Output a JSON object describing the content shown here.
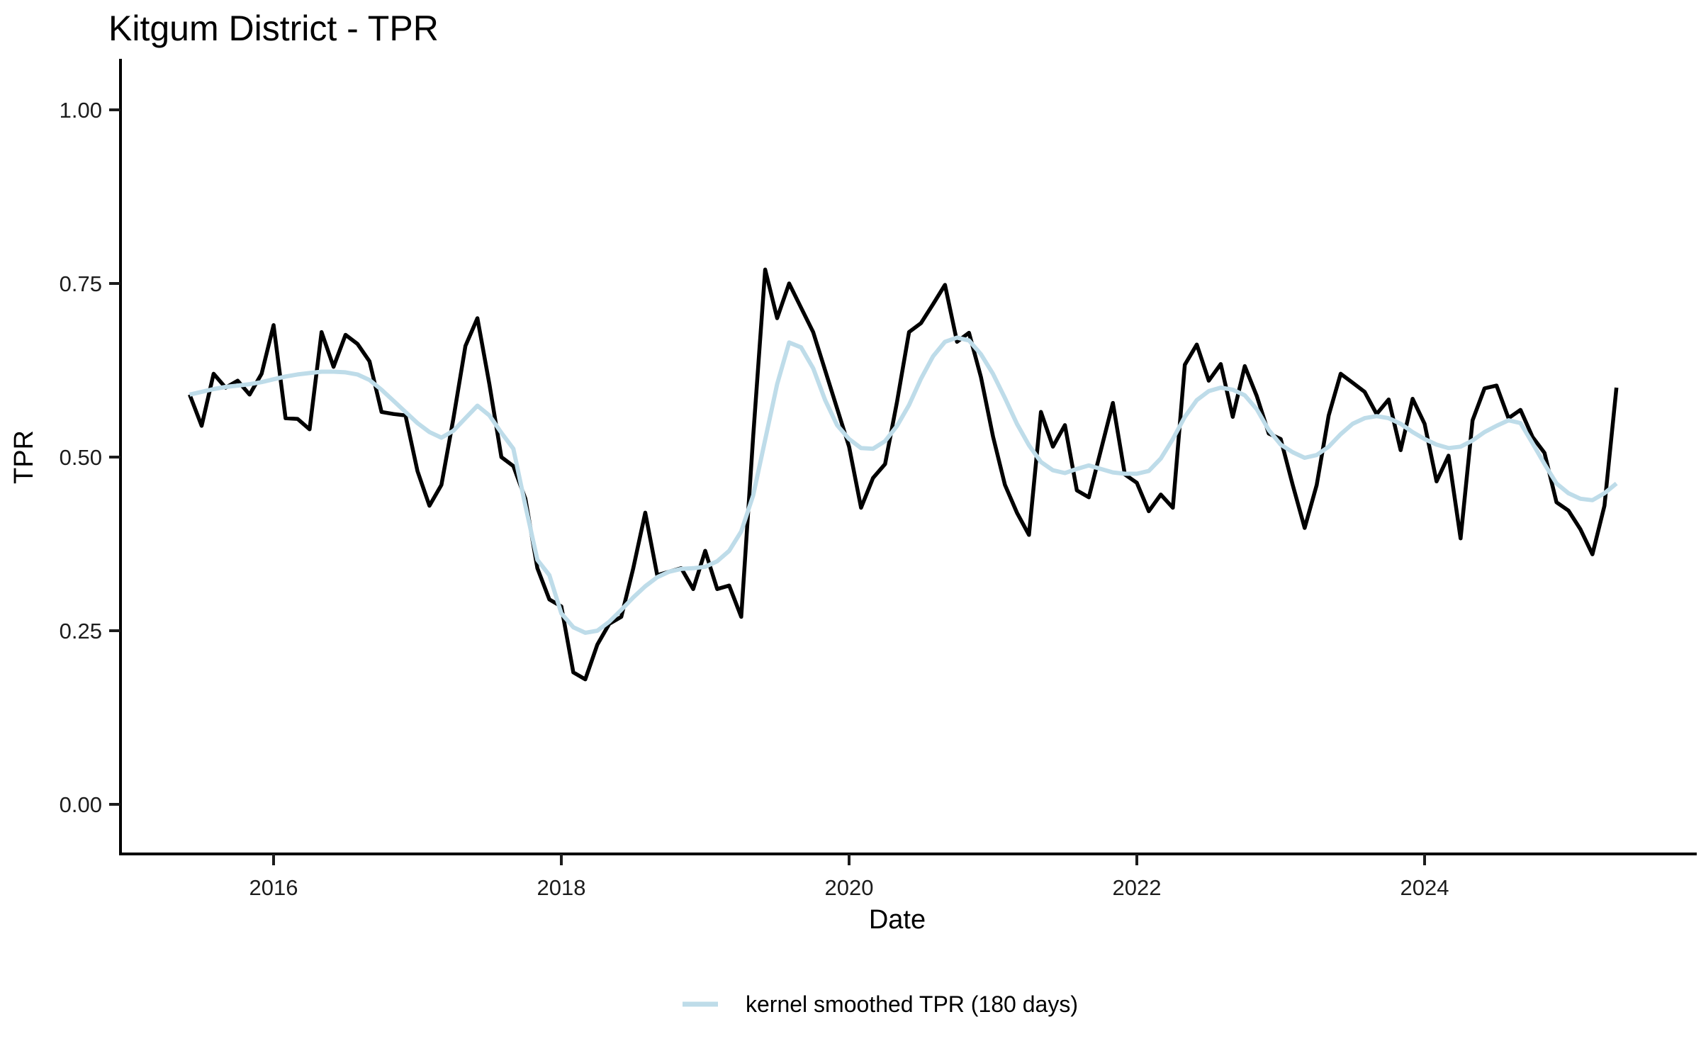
{
  "title": "Kitgum District - TPR",
  "x_axis": {
    "label": "Date",
    "tick_labels": [
      "2016",
      "2018",
      "2020",
      "2022",
      "2024"
    ]
  },
  "y_axis": {
    "label": "TPR",
    "tick_labels": [
      "0.00",
      "0.25",
      "0.50",
      "0.75",
      "1.00"
    ]
  },
  "legend": {
    "position": "bottom"
  },
  "colors": {
    "raw_line": "#000000",
    "smoothed_line": "#bedce9",
    "background": "#ffffff"
  },
  "chart_data": {
    "type": "line",
    "title": "Kitgum District - TPR",
    "xlabel": "Date",
    "ylabel": "TPR",
    "grid": "off",
    "legend_position": "bottom",
    "x_start_year": 2015.4167,
    "x_step_years": 0.0833333,
    "xlim": [
      2015.05,
      2025.6
    ],
    "ylim": [
      0.0,
      1.0
    ],
    "x_ticks": [
      {
        "label": "2016",
        "value": 2016
      },
      {
        "label": "2018",
        "value": 2018
      },
      {
        "label": "2020",
        "value": 2020
      },
      {
        "label": "2022",
        "value": 2022
      },
      {
        "label": "2024",
        "value": 2024
      }
    ],
    "y_ticks": [
      {
        "label": "0.00",
        "value": 0.0
      },
      {
        "label": "0.25",
        "value": 0.25
      },
      {
        "label": "0.50",
        "value": 0.5
      },
      {
        "label": "0.75",
        "value": 0.75
      },
      {
        "label": "1.00",
        "value": 1.0
      }
    ],
    "series": [
      {
        "name": "TPR",
        "color": "#000000",
        "in_legend": false,
        "values": [
          0.59,
          0.545,
          0.62,
          0.6,
          0.61,
          0.59,
          0.62,
          0.69,
          0.556,
          0.555,
          0.54,
          0.68,
          0.63,
          0.676,
          0.663,
          0.638,
          0.565,
          0.562,
          0.56,
          0.48,
          0.43,
          0.46,
          0.556,
          0.66,
          0.7,
          0.605,
          0.5,
          0.487,
          0.44,
          0.34,
          0.295,
          0.285,
          0.19,
          0.18,
          0.23,
          0.26,
          0.27,
          0.34,
          0.42,
          0.33,
          0.335,
          0.34,
          0.31,
          0.365,
          0.31,
          0.315,
          0.27,
          0.53,
          0.77,
          0.7,
          0.75,
          0.715,
          0.68,
          0.625,
          0.57,
          0.515,
          0.427,
          0.47,
          0.49,
          0.58,
          0.68,
          0.693,
          0.72,
          0.748,
          0.666,
          0.679,
          0.615,
          0.53,
          0.46,
          0.42,
          0.388,
          0.565,
          0.515,
          0.546,
          0.452,
          0.442,
          0.51,
          0.578,
          0.475,
          0.463,
          0.422,
          0.446,
          0.427,
          0.633,
          0.662,
          0.61,
          0.634,
          0.558,
          0.631,
          0.588,
          0.534,
          0.526,
          0.46,
          0.398,
          0.46,
          0.56,
          0.62,
          0.607,
          0.594,
          0.562,
          0.583,
          0.51,
          0.584,
          0.548,
          0.465,
          0.502,
          0.383,
          0.553,
          0.599,
          0.603,
          0.556,
          0.568,
          0.529,
          0.506,
          0.435,
          0.423,
          0.396,
          0.36,
          0.43,
          0.6
        ]
      },
      {
        "name": "kernel smoothed TPR (180 days)",
        "color": "#bedce9",
        "in_legend": true,
        "values": [
          0.59,
          0.594,
          0.598,
          0.601,
          0.603,
          0.605,
          0.608,
          0.612,
          0.616,
          0.619,
          0.621,
          0.623,
          0.623,
          0.622,
          0.619,
          0.611,
          0.597,
          0.581,
          0.565,
          0.549,
          0.536,
          0.528,
          0.538,
          0.556,
          0.574,
          0.56,
          0.535,
          0.512,
          0.43,
          0.352,
          0.33,
          0.275,
          0.255,
          0.247,
          0.25,
          0.263,
          0.28,
          0.298,
          0.314,
          0.327,
          0.335,
          0.339,
          0.34,
          0.342,
          0.35,
          0.365,
          0.393,
          0.445,
          0.525,
          0.605,
          0.665,
          0.658,
          0.628,
          0.582,
          0.546,
          0.526,
          0.513,
          0.512,
          0.523,
          0.545,
          0.575,
          0.613,
          0.645,
          0.666,
          0.672,
          0.668,
          0.648,
          0.62,
          0.585,
          0.548,
          0.517,
          0.493,
          0.481,
          0.477,
          0.483,
          0.488,
          0.483,
          0.478,
          0.476,
          0.476,
          0.48,
          0.498,
          0.526,
          0.558,
          0.582,
          0.595,
          0.6,
          0.597,
          0.589,
          0.569,
          0.539,
          0.518,
          0.507,
          0.499,
          0.503,
          0.515,
          0.533,
          0.548,
          0.556,
          0.559,
          0.556,
          0.548,
          0.536,
          0.526,
          0.518,
          0.513,
          0.515,
          0.524,
          0.536,
          0.545,
          0.553,
          0.549,
          0.52,
          0.49,
          0.462,
          0.448,
          0.44,
          0.438,
          0.448,
          0.462
        ]
      }
    ]
  }
}
